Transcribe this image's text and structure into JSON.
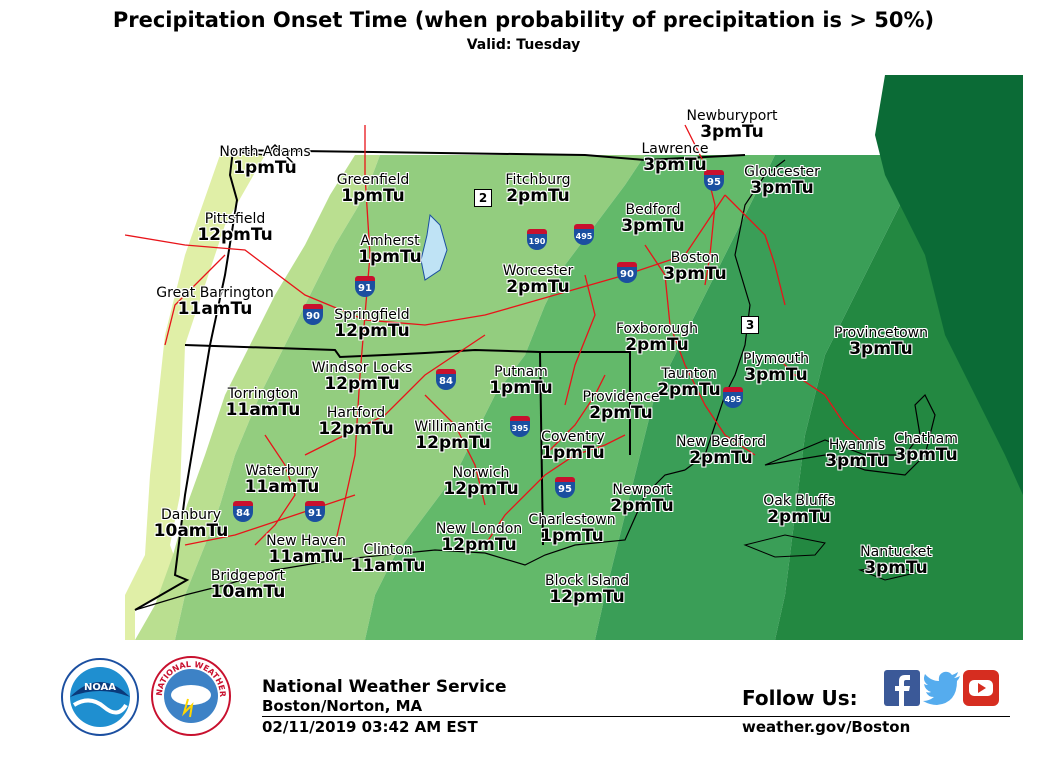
{
  "header": {
    "title": "Precipitation Onset Time (when probability of precipitation is > 50%)",
    "valid": "Valid: Tuesday"
  },
  "colors": {
    "t10am": "#e0efa7",
    "t11am": "#badf90",
    "t12pm": "#93cd7f",
    "t1pm": "#63b96a",
    "t2pm": "#3a9e57",
    "t3pm": "#238841",
    "t3pm_deep": "#0b6b36",
    "roads": "#e8141a",
    "state_border": "#000000"
  },
  "cities": [
    {
      "name": "North Adams",
      "time": "1pmTu"
    },
    {
      "name": "Greenfield",
      "time": "1pmTu"
    },
    {
      "name": "Fitchburg",
      "time": "2pmTu"
    },
    {
      "name": "Newburyport",
      "time": "3pmTu"
    },
    {
      "name": "Lawrence",
      "time": "3pmTu"
    },
    {
      "name": "Gloucester",
      "time": "3pmTu"
    },
    {
      "name": "Pittsfield",
      "time": "12pmTu"
    },
    {
      "name": "Amherst",
      "time": "1pmTu"
    },
    {
      "name": "Bedford",
      "time": "3pmTu"
    },
    {
      "name": "Worcester",
      "time": "2pmTu"
    },
    {
      "name": "Boston",
      "time": "3pmTu"
    },
    {
      "name": "Great Barrington",
      "time": "11amTu"
    },
    {
      "name": "Springfield",
      "time": "12pmTu"
    },
    {
      "name": "Foxborough",
      "time": "2pmTu"
    },
    {
      "name": "Provincetown",
      "time": "3pmTu"
    },
    {
      "name": "Windsor Locks",
      "time": "12pmTu"
    },
    {
      "name": "Putnam",
      "time": "1pmTu"
    },
    {
      "name": "Plymouth",
      "time": "3pmTu"
    },
    {
      "name": "Torrington",
      "time": "11amTu"
    },
    {
      "name": "Taunton",
      "time": "2pmTu"
    },
    {
      "name": "Providence",
      "time": "2pmTu"
    },
    {
      "name": "Hartford",
      "time": "12pmTu"
    },
    {
      "name": "Willimantic",
      "time": "12pmTu"
    },
    {
      "name": "Coventry",
      "time": "1pmTu"
    },
    {
      "name": "New Bedford",
      "time": "2pmTu"
    },
    {
      "name": "Hyannis",
      "time": "3pmTu"
    },
    {
      "name": "Chatham",
      "time": "3pmTu"
    },
    {
      "name": "Waterbury",
      "time": "11amTu"
    },
    {
      "name": "Norwich",
      "time": "12pmTu"
    },
    {
      "name": "Newport",
      "time": "2pmTu"
    },
    {
      "name": "Oak Bluffs",
      "time": "2pmTu"
    },
    {
      "name": "Danbury",
      "time": "10amTu"
    },
    {
      "name": "New Haven",
      "time": "11amTu"
    },
    {
      "name": "Clinton",
      "time": "11amTu"
    },
    {
      "name": "New London",
      "time": "12pmTu"
    },
    {
      "name": "Charlestown",
      "time": "1pmTu"
    },
    {
      "name": "Bridgeport",
      "time": "10amTu"
    },
    {
      "name": "Block Island",
      "time": "12pmTu"
    },
    {
      "name": "Nantucket",
      "time": "3pmTu"
    }
  ],
  "highway_shields": [
    "95",
    "495",
    "190",
    "90",
    "91",
    "90",
    "84",
    "395",
    "495",
    "84",
    "91",
    "95"
  ],
  "route_markers": [
    "2",
    "3"
  ],
  "footer": {
    "organization": "National Weather Service",
    "office": "Boston/Norton, MA",
    "timestamp": "02/11/2019 03:42 AM EST",
    "follow_label": "Follow Us:",
    "website": "weather.gov/Boston",
    "noaa_logo_text": "NOAA",
    "nws_logo_text": "NATIONAL WEATHER SERVICE",
    "social": [
      "facebook-icon",
      "twitter-icon",
      "youtube-icon"
    ]
  }
}
